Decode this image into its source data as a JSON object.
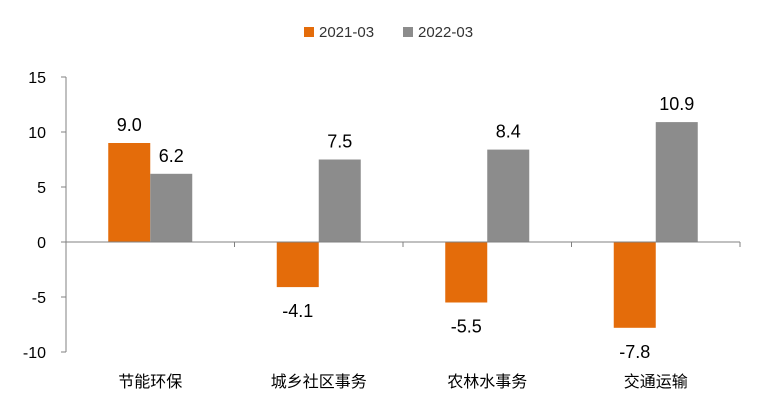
{
  "chart_data": {
    "type": "bar",
    "categories": [
      "节能环保",
      "城乡社区事务",
      "农林水事务",
      "交通运输"
    ],
    "series": [
      {
        "name": "2021-03",
        "color": "#E46C0A",
        "values": [
          9.0,
          -4.1,
          -5.5,
          -7.8
        ]
      },
      {
        "name": "2022-03",
        "color": "#8C8C8C",
        "values": [
          6.2,
          7.5,
          8.4,
          10.9
        ]
      }
    ],
    "ylim": [
      -10,
      15
    ],
    "yticks": [
      -10,
      -5,
      0,
      5,
      10,
      15
    ],
    "ytick_labels": [
      "-10",
      "-5",
      "0",
      "5",
      "10",
      "15"
    ],
    "data_labels": [
      [
        "9.0",
        "-4.1",
        "-5.5",
        "-7.8"
      ],
      [
        "6.2",
        "7.5",
        "8.4",
        "10.9"
      ]
    ],
    "title": "",
    "xlabel": "",
    "ylabel": "",
    "legend_position": "top-center",
    "grid": false
  }
}
